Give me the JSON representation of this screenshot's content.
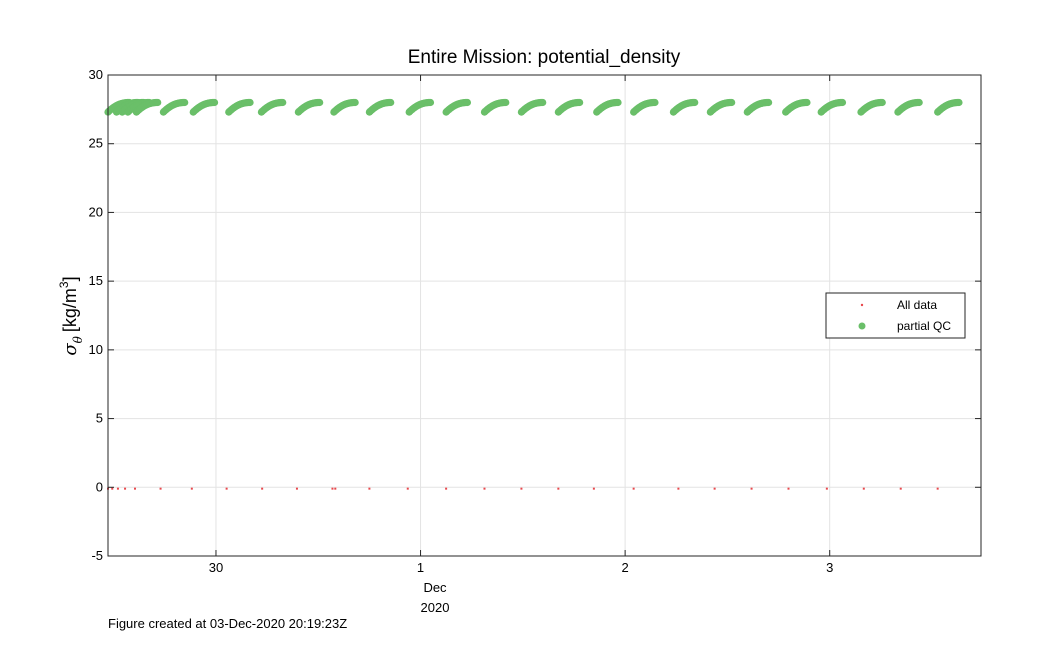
{
  "chart_data": {
    "type": "scatter",
    "title": "Entire Mission: potential_density",
    "ylabel": "σθ [kg/m3]",
    "ylabel_parts": {
      "symbol": "σ",
      "subscript": "θ",
      "unit": "[kg/m",
      "exponent": "3",
      "close": "]"
    },
    "ylim": [
      -5,
      30
    ],
    "yticks": [
      -5,
      0,
      5,
      10,
      15,
      20,
      25,
      30
    ],
    "xlim": [
      "2020-11-29T11:20",
      "2020-12-03T17:45"
    ],
    "xticks": [
      {
        "date": "2020-11-30",
        "label": "30"
      },
      {
        "date": "2020-12-01",
        "label": "1"
      },
      {
        "date": "2020-12-02",
        "label": "2"
      },
      {
        "date": "2020-12-03",
        "label": "3"
      }
    ],
    "xlabel_month": "Dec",
    "xlabel_year": "2020",
    "grid": true,
    "legend_position": "right",
    "series": [
      {
        "name": "All data",
        "color": "#e8474c",
        "marker": "dot",
        "points": [
          [
            "2020-11-29T11:20",
            -0.1
          ],
          [
            "2020-11-29T11:50",
            -0.1
          ],
          [
            "2020-11-29T12:30",
            -0.1
          ],
          [
            "2020-11-29T13:20",
            -0.1
          ],
          [
            "2020-11-29T14:30",
            -0.1
          ],
          [
            "2020-11-29T17:30",
            -0.1
          ],
          [
            "2020-11-29T21:10",
            -0.1
          ],
          [
            "2020-11-30T01:15",
            -0.1
          ],
          [
            "2020-11-30T05:25",
            -0.1
          ],
          [
            "2020-11-30T09:30",
            -0.1
          ],
          [
            "2020-11-30T13:40",
            -0.1
          ],
          [
            "2020-11-30T14:00",
            -0.1
          ],
          [
            "2020-11-30T18:00",
            -0.1
          ],
          [
            "2020-11-30T22:30",
            -0.1
          ],
          [
            "2020-12-01T03:00",
            -0.1
          ],
          [
            "2020-12-01T07:30",
            -0.1
          ],
          [
            "2020-12-01T11:50",
            -0.1
          ],
          [
            "2020-12-01T16:10",
            -0.1
          ],
          [
            "2020-12-01T20:20",
            -0.1
          ],
          [
            "2020-12-02T01:00",
            -0.1
          ],
          [
            "2020-12-02T06:15",
            -0.1
          ],
          [
            "2020-12-02T10:30",
            -0.1
          ],
          [
            "2020-12-02T14:50",
            -0.1
          ],
          [
            "2020-12-02T19:10",
            -0.1
          ],
          [
            "2020-12-02T23:40",
            -0.1
          ],
          [
            "2020-12-03T04:00",
            -0.1
          ],
          [
            "2020-12-03T08:20",
            -0.1
          ],
          [
            "2020-12-03T12:40",
            -0.1
          ]
        ]
      },
      {
        "name": "partial QC",
        "color": "#6abf69",
        "marker": "circle",
        "profile_starts": [
          "2020-11-29T11:20",
          "2020-11-29T12:20",
          "2020-11-29T13:00",
          "2020-11-29T13:40",
          "2020-11-29T14:40",
          "2020-11-29T17:50",
          "2020-11-29T21:20",
          "2020-11-30T01:30",
          "2020-11-30T05:20",
          "2020-11-30T09:40",
          "2020-11-30T13:50",
          "2020-11-30T18:00",
          "2020-11-30T22:40",
          "2020-12-01T03:00",
          "2020-12-01T07:30",
          "2020-12-01T11:50",
          "2020-12-01T16:10",
          "2020-12-01T20:40",
          "2020-12-02T01:00",
          "2020-12-02T05:40",
          "2020-12-02T10:00",
          "2020-12-02T14:20",
          "2020-12-02T18:50",
          "2020-12-02T23:00",
          "2020-12-03T03:40",
          "2020-12-03T08:00",
          "2020-12-03T12:40"
        ],
        "profile_duration_hours": 2.5,
        "y_start": 27.3,
        "y_end": 28.0
      }
    ]
  },
  "footer": {
    "created_text": "Figure created at 03-Dec-2020 20:19:23Z"
  }
}
